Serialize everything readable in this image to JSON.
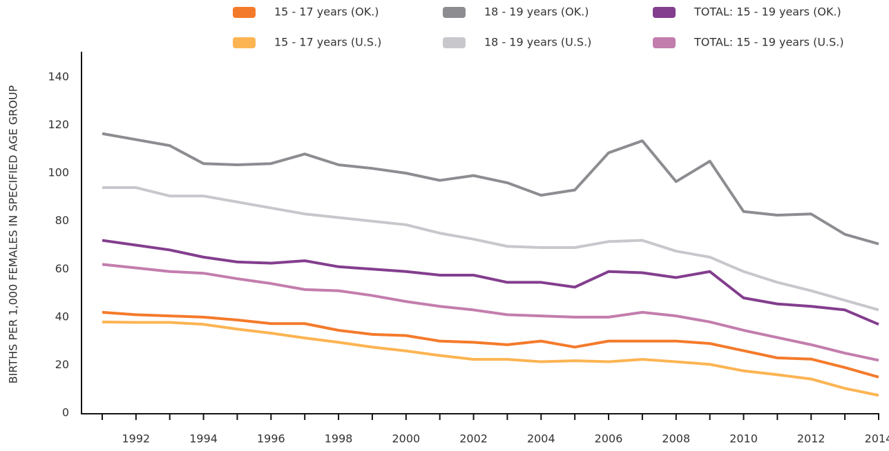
{
  "chart_data": {
    "type": "line",
    "y_label": "BIRTHS PER 1,000 FEMALES IN SPECIFIED AGE GROUP",
    "x": [
      1991,
      1992,
      1993,
      1994,
      1995,
      1996,
      1997,
      1998,
      1999,
      2000,
      2001,
      2002,
      2003,
      2004,
      2005,
      2006,
      2007,
      2008,
      2009,
      2010,
      2011,
      2012,
      2013,
      2014
    ],
    "xlim": [
      1991,
      2014
    ],
    "xticks": [
      1992,
      1994,
      1996,
      1998,
      2000,
      2002,
      2004,
      2006,
      2008,
      2010,
      2012,
      2014
    ],
    "ylim": [
      0,
      140
    ],
    "yticks": [
      0,
      20,
      40,
      60,
      80,
      100,
      120,
      140
    ],
    "series": [
      {
        "name": "15 - 17 years (OK.)",
        "color": "#f47a2b",
        "values": [
          42,
          41,
          40.5,
          40,
          38.8,
          37.3,
          37.3,
          34.5,
          32.8,
          32.3,
          30,
          29.5,
          28.5,
          30,
          27.5,
          30,
          30,
          30,
          29,
          26,
          23,
          22.5,
          19,
          15
        ]
      },
      {
        "name": "15 - 17 years (U.S.)",
        "color": "#fcb453",
        "values": [
          38,
          37.8,
          37.8,
          37,
          35,
          33.3,
          31.3,
          29.5,
          27.5,
          25.9,
          24,
          22.4,
          22.4,
          21.4,
          21.8,
          21.4,
          22.4,
          21.4,
          20.3,
          17.6,
          16,
          14.2,
          10.3,
          7.4
        ]
      },
      {
        "name": "18 - 19 years (OK.)",
        "color": "#8d8c91",
        "values": [
          116.5,
          114,
          111.5,
          104,
          103.5,
          104,
          108,
          103.5,
          102,
          100,
          97,
          99,
          96,
          90.8,
          93,
          108.5,
          113.5,
          96.5,
          105,
          84,
          82.5,
          83,
          74.5,
          70.5
        ]
      },
      {
        "name": "18 - 19 years (U.S.)",
        "color": "#c8c7cc",
        "values": [
          94,
          94,
          90.5,
          90.5,
          88,
          85.5,
          83,
          81.5,
          80,
          78.5,
          75,
          72.5,
          69.5,
          69,
          69,
          71.5,
          72,
          67.5,
          65,
          59,
          54.5,
          51,
          47,
          43
        ]
      },
      {
        "name": "TOTAL: 15 - 19 years (OK.)",
        "color": "#833e8e",
        "values": [
          72,
          70,
          68,
          65,
          63,
          62.5,
          63.5,
          61,
          60,
          59,
          57.5,
          57.5,
          54.5,
          54.5,
          52.5,
          59,
          58.5,
          56.5,
          59,
          48,
          45.5,
          44.5,
          43,
          37
        ]
      },
      {
        "name": "TOTAL: 15 - 19 years (U.S.)",
        "color": "#c37dad",
        "values": [
          62,
          60.5,
          59,
          58.3,
          56,
          54,
          51.5,
          51,
          49,
          46.5,
          44.5,
          43,
          41,
          40.5,
          40,
          40,
          42,
          40.5,
          38,
          34.5,
          31.5,
          28.5,
          25,
          22
        ]
      }
    ]
  }
}
